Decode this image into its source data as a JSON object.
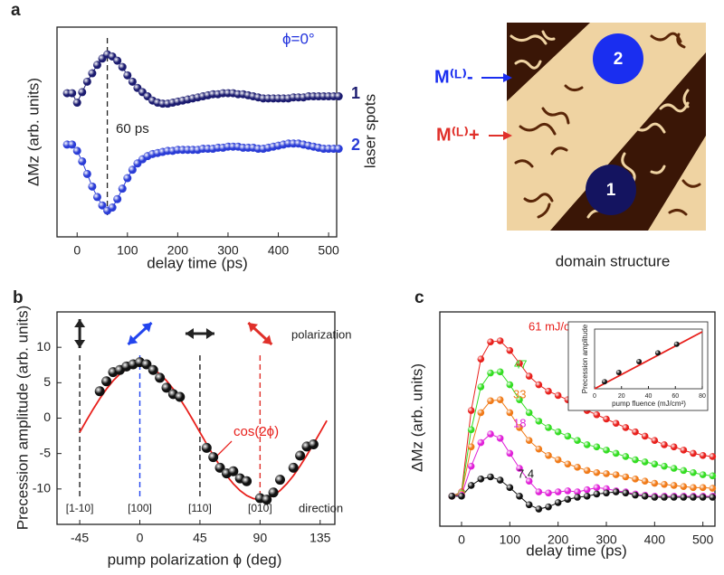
{
  "chart_data": [
    {
      "type": "line",
      "label": "a",
      "x_label": "delay time (ps)",
      "y_label": "ΔMz (arb. units)",
      "y2_label": "laser spots",
      "annotations": [
        "ϕ=0°",
        "60 ps"
      ],
      "marker_line": 60,
      "xlim": [
        -40,
        516
      ],
      "xticks": [
        0,
        100,
        200,
        300,
        400,
        500
      ],
      "ylim": [
        0,
        10
      ],
      "x": [
        -20,
        -10,
        0,
        10,
        20,
        30,
        40,
        50,
        60,
        70,
        80,
        90,
        100,
        110,
        120,
        130,
        140,
        150,
        160,
        170,
        180,
        190,
        200,
        210,
        220,
        230,
        240,
        250,
        260,
        270,
        280,
        290,
        300,
        310,
        320,
        330,
        340,
        350,
        360,
        370,
        380,
        390,
        400,
        410,
        420,
        430,
        440,
        450,
        460,
        470,
        480,
        490,
        500,
        510,
        520
      ],
      "series": [
        {
          "name": "1",
          "color": "#1c1c70",
          "style": "line+markers",
          "values": [
            6.85,
            6.85,
            6.4,
            6.9,
            7.4,
            7.8,
            8.2,
            8.5,
            8.7,
            8.6,
            8.4,
            8.1,
            7.7,
            7.4,
            7.1,
            6.9,
            6.7,
            6.5,
            6.4,
            6.35,
            6.35,
            6.4,
            6.45,
            6.5,
            6.55,
            6.6,
            6.65,
            6.7,
            6.75,
            6.8,
            6.8,
            6.85,
            6.85,
            6.85,
            6.8,
            6.8,
            6.75,
            6.7,
            6.65,
            6.6,
            6.6,
            6.6,
            6.6,
            6.6,
            6.6,
            6.65,
            6.65,
            6.65,
            6.7,
            6.7,
            6.7,
            6.7,
            6.7,
            6.7,
            6.7
          ]
        },
        {
          "name": "2",
          "color": "#2a3cd6",
          "style": "line+markers",
          "values": [
            4.4,
            4.4,
            4.1,
            3.6,
            3.0,
            2.4,
            1.9,
            1.5,
            1.25,
            1.4,
            1.8,
            2.3,
            2.8,
            3.2,
            3.5,
            3.7,
            3.85,
            3.95,
            4.0,
            4.05,
            4.1,
            4.1,
            4.15,
            4.15,
            4.15,
            4.15,
            4.15,
            4.2,
            4.2,
            4.2,
            4.25,
            4.25,
            4.3,
            4.3,
            4.3,
            4.25,
            4.25,
            4.25,
            4.2,
            4.2,
            4.25,
            4.3,
            4.35,
            4.4,
            4.45,
            4.45,
            4.45,
            4.4,
            4.35,
            4.3,
            4.25,
            4.2,
            4.2,
            4.2,
            4.2
          ]
        }
      ]
    },
    {
      "type": "scatter",
      "label": "b",
      "x_label": "pump polarization ϕ (deg)",
      "y_label": "Precession amplitude (arb. units)",
      "annotations": [
        "polarization",
        "direction",
        "cos(2ϕ)"
      ],
      "directions": [
        {
          "value": -45,
          "label": "[1-10]",
          "color": "#222222"
        },
        {
          "value": 0,
          "label": "[100]",
          "color": "#2244ee"
        },
        {
          "value": 45,
          "label": "[110]",
          "color": "#222222"
        },
        {
          "value": 90,
          "label": "[010]",
          "color": "#e0302a"
        }
      ],
      "xlim": [
        -62,
        146
      ],
      "xticks": [
        -45,
        0,
        45,
        90,
        135
      ],
      "ylim": [
        -15,
        15
      ],
      "yticks": [
        -10,
        -5,
        0,
        5,
        10
      ],
      "series": [
        {
          "color": "#111111",
          "style": "markers",
          "x": [
            -30,
            -25,
            -20,
            -15,
            -10,
            -5,
            0,
            5,
            10,
            15,
            20,
            25,
            30,
            50,
            55,
            60,
            65,
            70,
            75,
            80,
            90,
            95,
            100,
            105,
            115,
            120,
            125,
            130
          ],
          "values": [
            3.8,
            5.2,
            6.5,
            6.8,
            7.3,
            7.6,
            7.9,
            7.6,
            6.8,
            5.7,
            4.3,
            3.4,
            3.0,
            -4.2,
            -5.5,
            -7.0,
            -7.8,
            -7.5,
            -8.5,
            -8.9,
            -11.3,
            -11.5,
            -10.5,
            -8.7,
            -7.0,
            -5.3,
            -4.0,
            -3.7
          ]
        },
        {
          "name": "cos(2ϕ)",
          "color": "#e8201c",
          "style": "line",
          "x": [
            -45,
            -40,
            -35,
            -30,
            -25,
            -20,
            -15,
            -10,
            -5,
            0,
            5,
            10,
            15,
            20,
            25,
            30,
            35,
            40,
            45,
            50,
            55,
            60,
            65,
            70,
            75,
            80,
            85,
            90,
            95,
            100,
            105,
            110,
            115,
            120,
            125,
            130,
            135,
            140
          ],
          "values": [
            -2,
            -0.35,
            1.25,
            2.75,
            4.11,
            5.28,
            6.23,
            6.93,
            7.36,
            7.5,
            7.36,
            6.93,
            6.23,
            5.28,
            4.11,
            2.75,
            1.25,
            -0.35,
            -2,
            -3.65,
            -5.25,
            -6.75,
            -8.11,
            -9.28,
            -10.23,
            -10.93,
            -11.36,
            -11.5,
            -11.36,
            -10.93,
            -10.23,
            -9.28,
            -8.11,
            -6.75,
            -5.25,
            -3.65,
            -2,
            -0.35
          ]
        }
      ]
    },
    {
      "type": "line",
      "label": "c",
      "x_label": "delay time (ps)",
      "y_label": "ΔMz (arb. units)",
      "xlim": [
        -45,
        525
      ],
      "xticks": [
        0,
        100,
        200,
        300,
        400,
        500
      ],
      "ylim": [
        0,
        10
      ],
      "x": [
        -20,
        0,
        20,
        40,
        60,
        80,
        100,
        120,
        140,
        160,
        180,
        200,
        220,
        240,
        260,
        280,
        300,
        320,
        340,
        360,
        380,
        400,
        420,
        440,
        460,
        480,
        500,
        520
      ],
      "series": [
        {
          "name": "61 mJ/cm²",
          "color": "#e8201c",
          "style": "line+markers",
          "values": [
            1.4,
            1.6,
            5.4,
            7.8,
            8.6,
            8.65,
            8.2,
            7.6,
            7.0,
            6.6,
            6.3,
            6.1,
            5.9,
            5.6,
            5.4,
            5.2,
            5.0,
            4.8,
            4.6,
            4.4,
            4.2,
            4.0,
            3.8,
            3.7,
            3.55,
            3.4,
            3.3,
            3.25
          ]
        },
        {
          "name": "47",
          "color": "#33dd22",
          "style": "line+markers",
          "values": [
            1.4,
            1.55,
            4.5,
            6.5,
            7.15,
            7.2,
            6.6,
            5.9,
            5.3,
            4.9,
            4.6,
            4.4,
            4.2,
            4.0,
            3.8,
            3.7,
            3.55,
            3.4,
            3.25,
            3.1,
            3.0,
            2.9,
            2.8,
            2.7,
            2.6,
            2.5,
            2.4,
            2.35
          ]
        },
        {
          "name": "33",
          "color": "#f07a18",
          "style": "line+markers",
          "values": [
            1.4,
            1.5,
            3.7,
            5.3,
            5.85,
            5.9,
            5.3,
            4.6,
            4.0,
            3.6,
            3.3,
            3.1,
            2.9,
            2.75,
            2.6,
            2.5,
            2.45,
            2.4,
            2.3,
            2.2,
            2.1,
            2.0,
            1.95,
            1.9,
            1.85,
            1.8,
            1.8,
            1.77
          ]
        },
        {
          "name": "18",
          "color": "#e020d8",
          "style": "line+markers",
          "values": [
            1.4,
            1.45,
            2.8,
            3.9,
            4.3,
            4.1,
            3.4,
            2.7,
            2.1,
            1.6,
            1.55,
            1.6,
            1.65,
            1.6,
            1.7,
            1.8,
            1.75,
            1.65,
            1.6,
            1.5,
            1.45,
            1.4,
            1.4,
            1.4,
            1.4,
            1.4,
            1.4,
            1.4
          ]
        },
        {
          "name": "7.4",
          "color": "#111111",
          "style": "line+markers",
          "values": [
            1.4,
            1.4,
            1.9,
            2.2,
            2.3,
            2.15,
            1.8,
            1.4,
            1.0,
            0.8,
            0.9,
            1.1,
            1.25,
            1.35,
            1.4,
            1.5,
            1.55,
            1.6,
            1.55,
            1.45,
            1.4,
            1.35,
            1.35,
            1.35,
            1.35,
            1.35,
            1.35,
            1.35
          ]
        }
      ]
    },
    {
      "type": "scatter",
      "x_label": "pump fluence (mJ/cm²)",
      "y_label": "Precession amplitude",
      "xlim": [
        0,
        80
      ],
      "xticks": [
        0,
        20,
        40,
        60,
        80
      ],
      "ylim": [
        0,
        11
      ],
      "series": [
        {
          "color": "#e8201c",
          "style": "line",
          "x": [
            0,
            80
          ],
          "values": [
            0,
            10.5
          ]
        },
        {
          "color": "#111111",
          "style": "markers",
          "x": [
            7.4,
            18,
            33,
            47,
            61
          ],
          "values": [
            1.3,
            3.0,
            5.0,
            6.6,
            8.2
          ]
        }
      ]
    }
  ],
  "image": {
    "labels": [
      "M⁽ᴸ⁾-",
      "M⁽ᴸ⁾+"
    ],
    "spots": [
      "2",
      "1"
    ],
    "caption": "domain structure"
  }
}
